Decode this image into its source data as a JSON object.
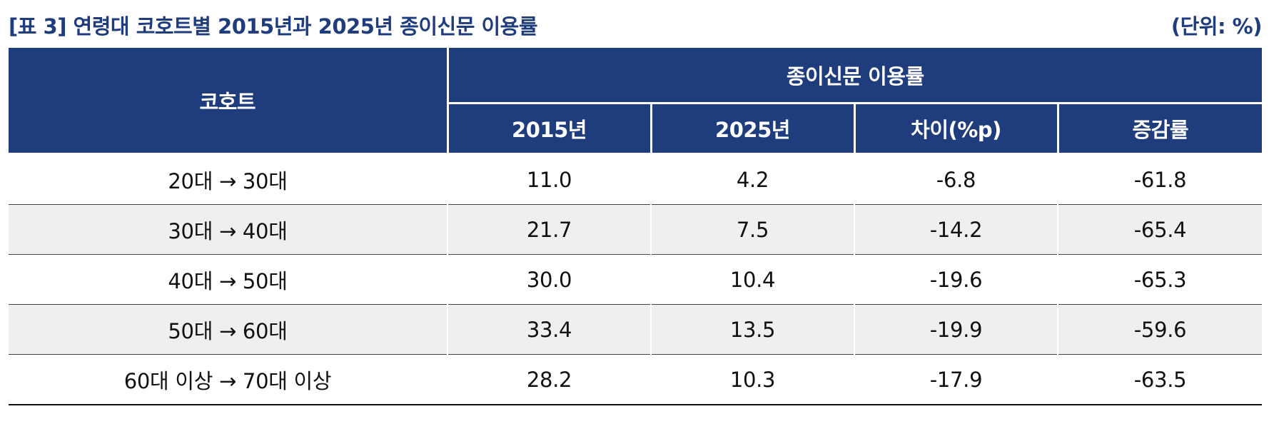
{
  "title": "[표 3] 연령대 코호트별 2015년과 2025년 종이신문 이용률",
  "unit": "(단위: %)",
  "colors": {
    "accent": "#1f3c7c",
    "header_text": "#ffffff",
    "alt_row": "#efefef"
  },
  "table": {
    "header": {
      "cohort": "코호트",
      "group": "종이신문 이용률",
      "sub": [
        "2015년",
        "2025년",
        "차이(%p)",
        "증감률"
      ]
    },
    "rows": [
      {
        "cohort": "20대 → 30대",
        "y2015": "11.0",
        "y2025": "4.2",
        "diff": "-6.8",
        "rate": "-61.8"
      },
      {
        "cohort": "30대 → 40대",
        "y2015": "21.7",
        "y2025": "7.5",
        "diff": "-14.2",
        "rate": "-65.4"
      },
      {
        "cohort": "40대 → 50대",
        "y2015": "30.0",
        "y2025": "10.4",
        "diff": "-19.6",
        "rate": "-65.3"
      },
      {
        "cohort": "50대 → 60대",
        "y2015": "33.4",
        "y2025": "13.5",
        "diff": "-19.9",
        "rate": "-59.6"
      },
      {
        "cohort": "60대 이상 → 70대 이상",
        "y2015": "28.2",
        "y2025": "10.3",
        "diff": "-17.9",
        "rate": "-63.5"
      }
    ]
  }
}
